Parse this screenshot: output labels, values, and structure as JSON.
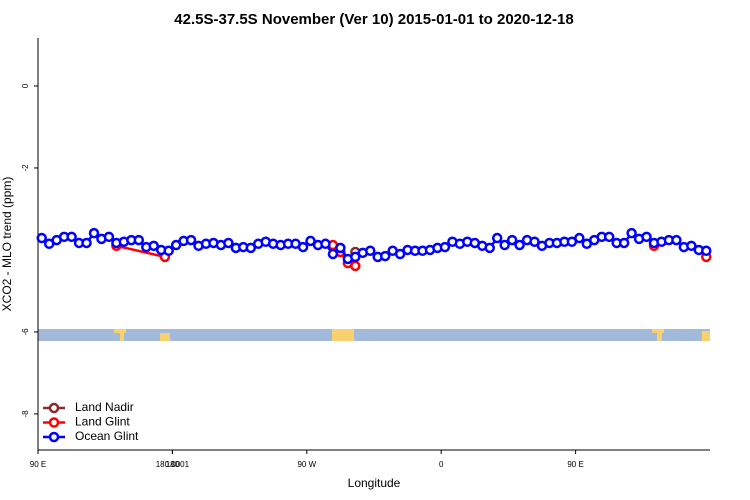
{
  "chart_data": {
    "type": "line",
    "title": "42.5S-37.5S November (Ver 10)   2015-01-01 to 2020-12-18",
    "x_label": "Longitude",
    "y_label": "XCO2 - MLO trend (ppm)",
    "xlim": [
      90,
      540
    ],
    "xticks": [
      {
        "value": 90,
        "label": "90 E"
      },
      180,
      {
        "value": 270,
        "label": "90 W"
      },
      {
        "value": 360,
        "label": "0"
      },
      {
        "value": 450,
        "label": "90 E"
      },
      180.0001
    ],
    "ylim": [
      -8.88,
      1.17
    ],
    "yticks": [
      0,
      -2,
      -6,
      -8
    ],
    "legend": "bottom-left",
    "series": [
      {
        "name": "Land Nadir",
        "color": "#8b2a2a",
        "x": [
          302.5
        ],
        "values": [
          -4.05
        ]
      },
      {
        "name": "Land Glint",
        "color": "#ff0000",
        "x": [
          142.5,
          175,
          200,
          287.5,
          292.5,
          297.5,
          302.5,
          402.5,
          502.5,
          520,
          537.5
        ],
        "values": [
          -3.9,
          -4.17,
          null,
          -3.88,
          -4.05,
          -4.32,
          -4.39,
          null,
          -3.9,
          null,
          -4.17
        ]
      },
      {
        "name": "Ocean Glint",
        "color": "#0000ff",
        "x": [
          92.5,
          97.5,
          102.5,
          107.5,
          112.5,
          117.5,
          122.5,
          127.5,
          132.5,
          137.5,
          142.5,
          147.5,
          152.5,
          157.5,
          162.5,
          167.5,
          172.5,
          177.5,
          182.5,
          187.5,
          192.5,
          197.5,
          202.5,
          207.5,
          212.5,
          217.5,
          222.5,
          227.5,
          232.5,
          237.5,
          242.5,
          247.5,
          252.5,
          257.5,
          262.5,
          267.5,
          272.5,
          277.5,
          282.5,
          287.5,
          292.5,
          297.5,
          302.5,
          307.5,
          312.5,
          317.5,
          322.5,
          327.5,
          332.5,
          337.5,
          342.5,
          347.5,
          352.5,
          357.5,
          362.5,
          367.5,
          372.5,
          377.5,
          382.5,
          387.5,
          392.5,
          397.5,
          402.5,
          407.5,
          412.5,
          417.5,
          422.5,
          427.5,
          432.5,
          437.5,
          442.5,
          447.5,
          452.5,
          457.5,
          462.5,
          467.5,
          472.5,
          477.5,
          482.5,
          487.5,
          492.5,
          497.5,
          502.5,
          507.5,
          512.5,
          517.5,
          522.5,
          527.5,
          532.5,
          537.5
        ],
        "values": [
          -3.71,
          -3.85,
          -3.76,
          -3.68,
          -3.68,
          -3.83,
          -3.83,
          -3.59,
          -3.73,
          -3.68,
          -3.83,
          -3.8,
          -3.76,
          -3.76,
          -3.93,
          -3.9,
          -4.0,
          -4.02,
          -3.88,
          -3.78,
          -3.76,
          -3.9,
          -3.85,
          -3.83,
          -3.88,
          -3.83,
          -3.95,
          -3.93,
          -3.95,
          -3.85,
          -3.8,
          -3.85,
          -3.88,
          -3.85,
          -3.85,
          -3.93,
          -3.78,
          -3.88,
          -3.85,
          -4.1,
          -3.95,
          -4.22,
          -4.17,
          -4.07,
          -4.02,
          -4.17,
          -4.15,
          -4.02,
          -4.1,
          -4.0,
          -4.02,
          -4.02,
          -4.0,
          -3.95,
          -3.93,
          -3.8,
          -3.85,
          -3.8,
          -3.83,
          -3.9,
          -3.95,
          -3.71,
          -3.88,
          -3.76,
          -3.88,
          -3.76,
          -3.8,
          -3.9,
          -3.83,
          -3.83,
          -3.8,
          -3.8,
          -3.71,
          -3.85,
          -3.76,
          -3.68,
          -3.68,
          -3.83,
          -3.83,
          -3.59,
          -3.73,
          -3.68,
          -3.83,
          -3.8,
          -3.76,
          -3.76,
          -3.93,
          -3.9,
          -4.0,
          -4.02
        ]
      }
    ]
  }
}
